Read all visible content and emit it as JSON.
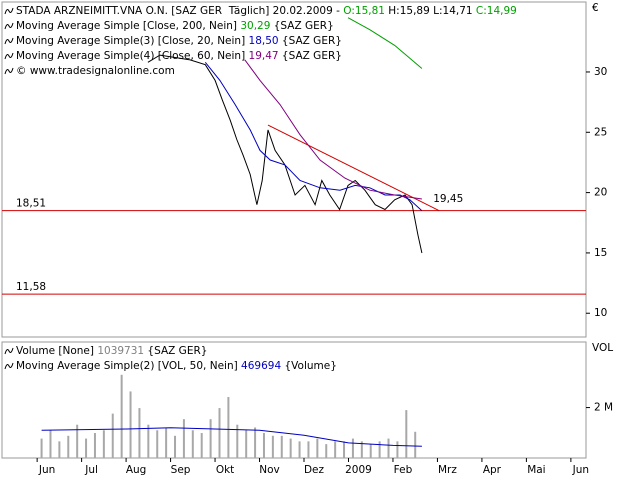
{
  "chart_data": [
    {
      "type": "line",
      "unit": "€",
      "legend": [
        [
          {
            "text": "STADA ARZNEIMITT.VNA O.N. [SAZ GER  Täglich] 20.02.2009 - ",
            "color": "#000000"
          },
          {
            "text": "O:15,81",
            "color": "#00a000"
          },
          {
            "text": " H:15,89 L:14,71 ",
            "color": "#000000"
          },
          {
            "text": "C:14,99",
            "color": "#00a000"
          }
        ],
        [
          {
            "text": "Moving Average Simple [Close, 200, Nein] ",
            "color": "#000000"
          },
          {
            "text": "30,29",
            "color": "#00a000"
          },
          {
            "text": " {SAZ GER}",
            "color": "#000000"
          }
        ],
        [
          {
            "text": "Moving Average Simple(3) [Close, 20, Nein] ",
            "color": "#000000"
          },
          {
            "text": "18,50",
            "color": "#0000c0"
          },
          {
            "text": " {SAZ GER}",
            "color": "#000000"
          }
        ],
        [
          {
            "text": "Moving Average Simple(4) [Close, 60, Nein] ",
            "color": "#000000"
          },
          {
            "text": "19,47",
            "color": "#800080"
          },
          {
            "text": " {SAZ GER}",
            "color": "#000000"
          }
        ],
        [
          {
            "text": "© www.tradesignalonline.com",
            "color": "#000000"
          }
        ]
      ],
      "xlim": [
        -0.79,
        12.34
      ],
      "ylim": [
        8.03,
        35.8
      ],
      "yticks": [
        10,
        15,
        20,
        25,
        30
      ],
      "hlines": [
        {
          "value": 18.51,
          "label": "18,51",
          "color": "#d00000"
        },
        {
          "value": 11.58,
          "label": "11,58",
          "color": "#d00000"
        }
      ],
      "trendline": {
        "x": [
          5.19,
          9.04
        ],
        "values": [
          25.6,
          18.5
        ],
        "value": 19.45,
        "label": "19,45",
        "color": "#d00000"
      },
      "series": [
        {
          "type": "line",
          "color": "#000000",
          "x": [
            2.49,
            2.76,
            3.1,
            3.44,
            3.78,
            4.0,
            4.16,
            4.34,
            4.49,
            4.63,
            4.79,
            4.94,
            5.06,
            5.19,
            5.35,
            5.57,
            5.8,
            6.02,
            6.25,
            6.4,
            6.58,
            6.8,
            6.99,
            7.15,
            7.37,
            7.6,
            7.82,
            8.04,
            8.27,
            8.43,
            8.56,
            8.65
          ],
          "values": [
            30.8,
            31.4,
            31.2,
            31.0,
            30.6,
            29.3,
            27.7,
            26.0,
            24.4,
            23.1,
            21.5,
            19.0,
            21.0,
            25.2,
            23.5,
            22.3,
            19.8,
            20.6,
            19.0,
            21.0,
            19.8,
            18.6,
            20.6,
            21.0,
            20.2,
            19.0,
            18.6,
            19.4,
            19.8,
            19.0,
            16.5,
            14.99
          ]
        },
        {
          "type": "line",
          "color": "#00a000",
          "x": [
            6.99,
            7.48,
            8.04,
            8.65
          ],
          "values": [
            34.5,
            33.5,
            32.2,
            30.29
          ]
        },
        {
          "type": "line",
          "color": "#0000c0",
          "x": [
            3.78,
            4.11,
            4.45,
            4.79,
            5.01,
            5.24,
            5.57,
            5.91,
            6.36,
            6.81,
            7.15,
            7.48,
            7.82,
            8.16,
            8.38,
            8.65
          ],
          "values": [
            30.8,
            29.3,
            27.3,
            25.2,
            23.5,
            22.7,
            22.3,
            21.0,
            20.4,
            20.2,
            20.6,
            20.4,
            19.8,
            19.8,
            19.4,
            18.5
          ]
        },
        {
          "type": "line",
          "color": "#800080",
          "x": [
            4.67,
            5.01,
            5.46,
            5.91,
            6.36,
            6.92,
            7.48,
            8.04,
            8.65
          ],
          "values": [
            31.0,
            29.3,
            27.3,
            24.8,
            22.7,
            21.2,
            20.2,
            19.8,
            19.47
          ]
        }
      ]
    },
    {
      "type": "bar",
      "unit": "VOL",
      "legend": [
        [
          {
            "text": "Volume [None] ",
            "color": "#000000"
          },
          {
            "text": "1039731",
            "color": "#808080"
          },
          {
            "text": " {SAZ GER}",
            "color": "#000000"
          }
        ],
        [
          {
            "text": "Moving Average Simple(2) [VOL, 50, Nein] ",
            "color": "#000000"
          },
          {
            "text": "469694",
            "color": "#0000c0"
          },
          {
            "text": " {Volume}",
            "color": "#000000"
          }
        ]
      ],
      "xlim": [
        -0.79,
        12.34
      ],
      "ylim": [
        0,
        4600000
      ],
      "yticks": [
        {
          "value": 2000000,
          "label": "2 M"
        }
      ],
      "xticks": [
        {
          "value": 0,
          "label": "Jun"
        },
        {
          "value": 1,
          "label": "Jul"
        },
        {
          "value": 2,
          "label": "Aug"
        },
        {
          "value": 3,
          "label": "Sep"
        },
        {
          "value": 4,
          "label": "Okt"
        },
        {
          "value": 5,
          "label": "Nov"
        },
        {
          "value": 6,
          "label": "Dez"
        },
        {
          "value": 7,
          "label": "2009"
        },
        {
          "value": 8,
          "label": "Feb"
        },
        {
          "value": 9,
          "label": "Mrz"
        },
        {
          "value": 10,
          "label": "Apr"
        },
        {
          "value": 11,
          "label": "Mai"
        },
        {
          "value": 12,
          "label": "Jun"
        }
      ],
      "series": [
        {
          "type": "bar",
          "color": "#a8a8a8",
          "x": [
            0.1,
            0.3,
            0.5,
            0.7,
            0.9,
            1.1,
            1.3,
            1.5,
            1.7,
            1.9,
            2.1,
            2.3,
            2.5,
            2.7,
            2.9,
            3.1,
            3.3,
            3.5,
            3.7,
            3.9,
            4.1,
            4.3,
            4.5,
            4.7,
            4.9,
            5.1,
            5.3,
            5.5,
            5.7,
            5.9,
            6.1,
            6.3,
            6.5,
            6.7,
            6.9,
            7.1,
            7.3,
            7.5,
            7.7,
            7.9,
            8.1,
            8.3,
            8.5
          ],
          "values": [
            770000,
            1100000,
            660000,
            880000,
            1320000,
            770000,
            990000,
            1100000,
            1760000,
            3300000,
            2640000,
            1980000,
            1320000,
            1100000,
            1210000,
            880000,
            1540000,
            1100000,
            990000,
            1540000,
            1980000,
            2420000,
            1320000,
            1100000,
            1210000,
            990000,
            880000,
            880000,
            770000,
            660000,
            660000,
            770000,
            550000,
            660000,
            660000,
            770000,
            660000,
            550000,
            660000,
            770000,
            660000,
            1900000,
            1039731
          ]
        },
        {
          "type": "line",
          "color": "#0000c0",
          "x": [
            0.1,
            2.0,
            3.0,
            4.0,
            5.0,
            6.0,
            7.0,
            8.0,
            8.65
          ],
          "values": [
            1100000,
            1150000,
            1200000,
            1150000,
            1100000,
            900000,
            600000,
            500000,
            469694
          ]
        }
      ]
    }
  ]
}
